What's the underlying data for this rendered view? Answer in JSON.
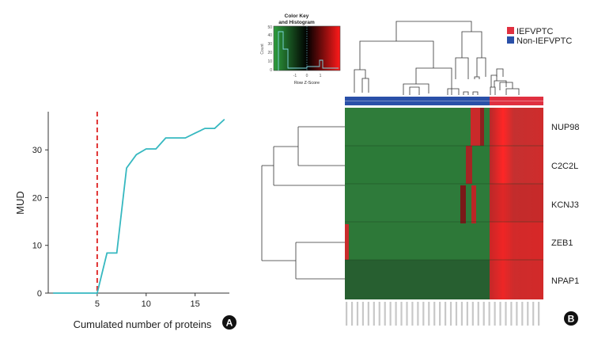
{
  "chart_data": [
    {
      "panel": "A",
      "type": "line",
      "xlabel": "Cumulated number of proteins",
      "ylabel": "MUD",
      "xlim": [
        0,
        18.5
      ],
      "ylim": [
        0,
        38
      ],
      "xticks": [
        5,
        10,
        15
      ],
      "yticks": [
        0,
        10,
        20,
        30
      ],
      "x": [
        0.5,
        5,
        6,
        7,
        8,
        9,
        10,
        11,
        12,
        13,
        14,
        15,
        16,
        17,
        18
      ],
      "y": [
        0,
        0,
        8.4,
        8.4,
        26.2,
        29.0,
        30.2,
        30.2,
        32.5,
        32.5,
        32.5,
        33.5,
        34.5,
        34.5,
        36.4
      ],
      "line_color": "#36b8c0",
      "cutoff_x": 5,
      "cutoff_color": "#e03030"
    },
    {
      "panel": "B",
      "type": "heatmap",
      "rows": [
        "NUP98",
        "C2C2L",
        "KCNJ3",
        "ZEB1",
        "NPAP1"
      ],
      "color_key": {
        "title": "Color Key",
        "subtitle": "and Histogram",
        "xlabel": "Row Z-Score",
        "ylabel": "Count",
        "xticks": [
          "-1",
          "0",
          "1"
        ],
        "yticks": [
          "0",
          "10",
          "20",
          "30",
          "40",
          "50"
        ],
        "low_color": "#2e9e3e",
        "mid_color": "#000000",
        "high_color": "#ff1a1a"
      },
      "legend": [
        {
          "label": "IEFVPTC",
          "color": "#e03040"
        },
        {
          "label": "Non-IEFVPTC",
          "color": "#2a50a8"
        }
      ],
      "group_split": "Non-IEFVPTC columns first, then IEFVPTC columns"
    }
  ],
  "panel_labels": {
    "a": "A",
    "b": "B"
  }
}
